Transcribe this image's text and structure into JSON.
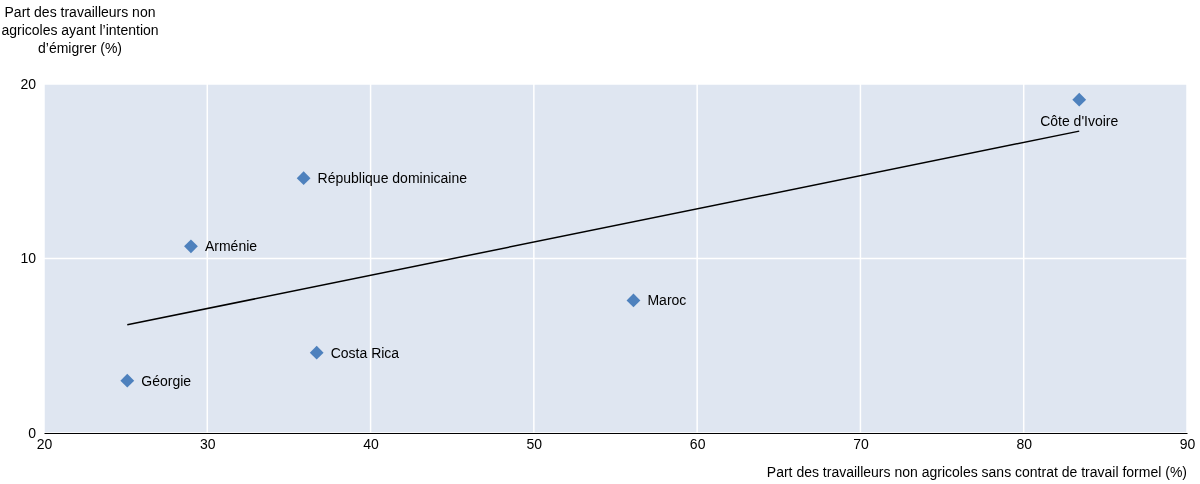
{
  "chart_data": {
    "type": "scatter",
    "ylabel": "Part des travailleurs non\nagricoles ayant l’intention\nd’émigrer (%)",
    "xlabel": "Part des travailleurs non agricoles sans contrat de travail formel (%)",
    "xlim": [
      20,
      90
    ],
    "xticks": [
      20,
      30,
      40,
      50,
      60,
      70,
      80,
      90
    ],
    "ylim": [
      0,
      20
    ],
    "yticks": [
      0,
      10,
      20
    ],
    "grid": true,
    "series": [
      {
        "marker": "diamond",
        "color": "#4e81bd",
        "x": [
          83.4,
          35.9,
          29.0,
          56.1,
          36.7,
          25.1
        ],
        "values": [
          19.1,
          14.6,
          10.7,
          7.6,
          4.6,
          3.0
        ]
      },
      {
        "type": "line",
        "marker": "none",
        "color": "#000000",
        "x": [
          25.1,
          83.4
        ],
        "values": [
          6.2,
          17.3
        ]
      }
    ],
    "annotations": [
      {
        "text": "Côte d'Ivoire",
        "x": 83.4,
        "y": 19.1
      },
      {
        "text": "République dominicaine",
        "x": 35.9,
        "y": 14.6
      },
      {
        "text": "Arménie",
        "x": 29.0,
        "y": 10.7
      },
      {
        "text": "Maroc",
        "x": 56.1,
        "y": 7.6
      },
      {
        "text": "Costa Rica",
        "x": 36.7,
        "y": 4.6
      },
      {
        "text": "Géorgie",
        "x": 25.1,
        "y": 3.0
      }
    ]
  }
}
